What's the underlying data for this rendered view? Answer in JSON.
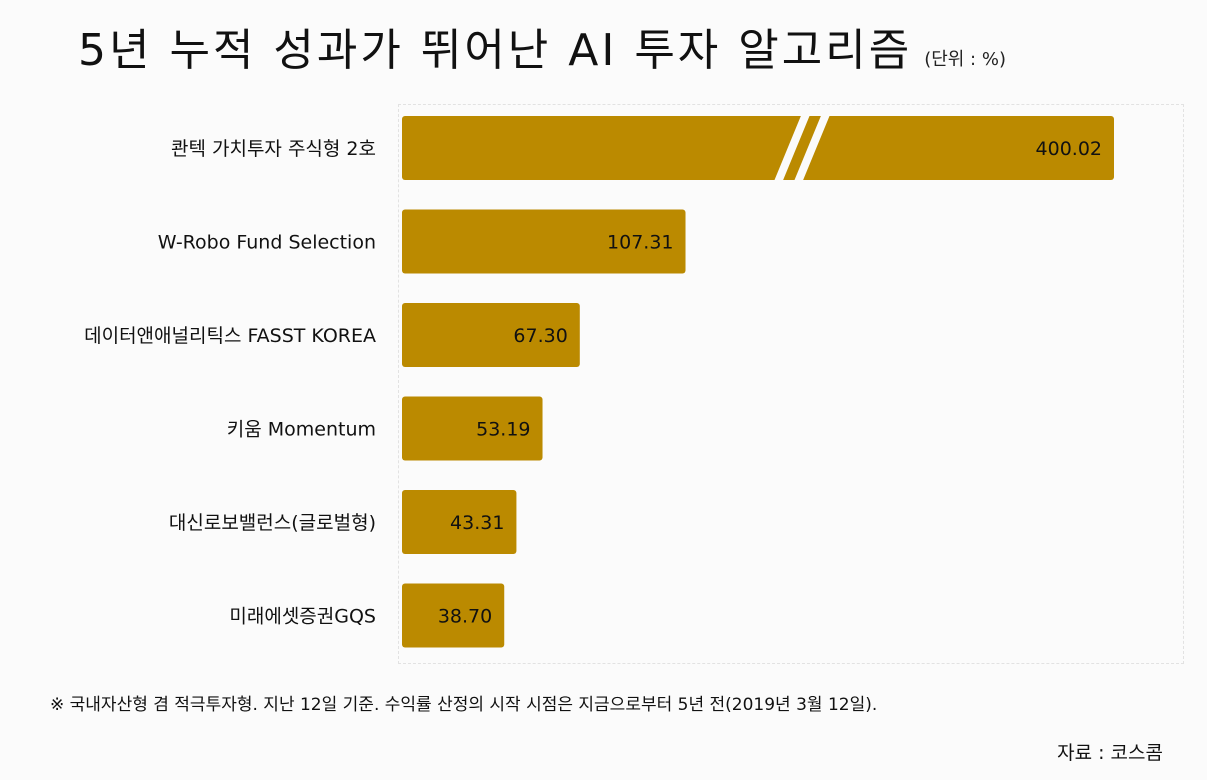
{
  "title": "5년 누적 성과가 뛰어난 AI 투자 알고리즘",
  "unit": "(단위 : %)",
  "footnote": "※ 국내자산형 겸 적극투자형. 지난 12일 기준. 수익률 산정의 시작 시점은 지금으로부터 5년 전(2019년 3월 12일).",
  "source": "자료 : 코스콤",
  "colors": {
    "bar": "#bb8a00",
    "background": "#fbfbfb"
  },
  "chart_data": {
    "type": "bar",
    "orientation": "horizontal",
    "axis_break": true,
    "categories": [
      "콴텍 가치투자 주식형 2호",
      "W-Robo Fund Selection",
      "데이터앤애널리틱스 FASST KOREA",
      "키움 Momentum",
      "대신로보밸런스(글로벌형)",
      "미래에셋증권GQS"
    ],
    "values": [
      400.02,
      107.31,
      67.3,
      53.19,
      43.31,
      38.7
    ],
    "value_labels": [
      "400.02",
      "107.31",
      "67.30",
      "53.19",
      "43.31",
      "38.70"
    ],
    "title": "5년 누적 성과가 뛰어난 AI 투자 알고리즘",
    "xlabel": "",
    "ylabel": "",
    "grid": false
  }
}
